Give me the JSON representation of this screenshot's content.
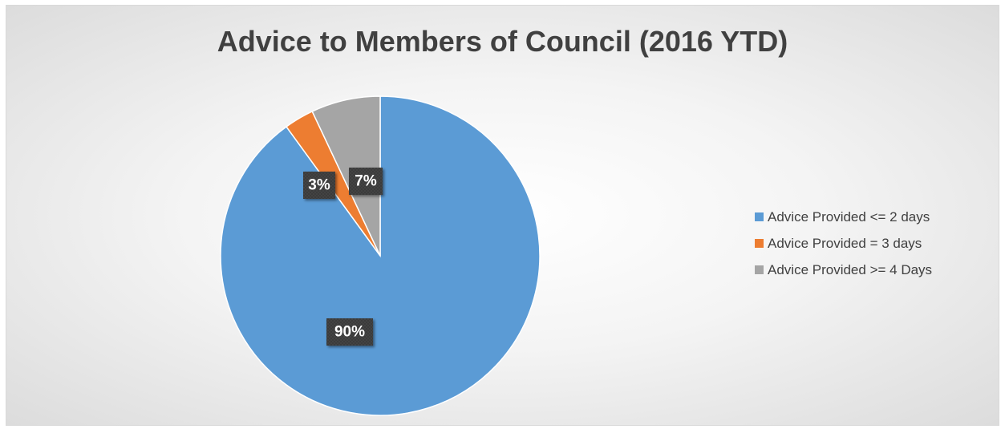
{
  "chart_data": {
    "type": "pie",
    "title": "Advice to Members of Council (2016 YTD)",
    "categories": [
      "Advice Provided <= 2 days",
      "Advice Provided = 3 days",
      "Advice Provided >= 4 Days"
    ],
    "values": [
      90,
      3,
      7
    ],
    "data_labels": [
      "90%",
      "3%",
      "7%"
    ],
    "colors": [
      "#5b9bd5",
      "#ed7d31",
      "#a5a5a5"
    ],
    "legend_position": "right"
  }
}
